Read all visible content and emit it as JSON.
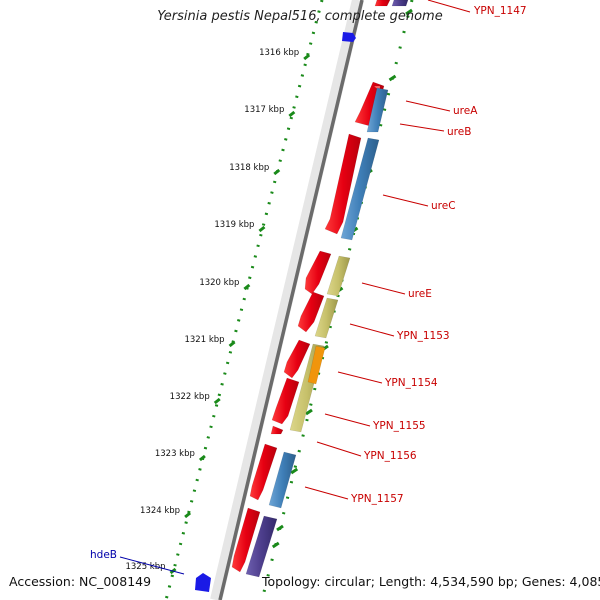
{
  "map": {
    "title": "Yersinia pestis Nepal516, complete genome",
    "accession": "Accession: NC_008149",
    "topology": "Topology: circular; Length: 4,534,590 bp; Genes: 4,085"
  },
  "colors": {
    "forward_gene": "#e8001c",
    "blue_gene": "#3f7fb8",
    "olive_gene": "#c6c06a",
    "orange_gene": "#f0950c",
    "purple_gene": "#4d3e8c",
    "marker_blue": "#1a1ae6",
    "tick_green": "#1a8a1a",
    "label_red": "#c80000",
    "label_blue": "#0000aa"
  },
  "ticks": [
    "1316 kbp",
    "1317 kbp",
    "1318 kbp",
    "1319 kbp",
    "1320 kbp",
    "1321 kbp",
    "1322 kbp",
    "1323 kbp",
    "1324 kbp",
    "1325 kbp"
  ],
  "gene_labels": [
    "YPN_1147",
    "ureA",
    "ureB",
    "ureC",
    "ureE",
    "YPN_1153",
    "YPN_1154",
    "YPN_1155",
    "YPN_1156",
    "YPN_1157"
  ],
  "left_labels": [
    "hdeB"
  ],
  "icons": [
    "forward-marker-icon",
    "reverse-marker-icon"
  ]
}
